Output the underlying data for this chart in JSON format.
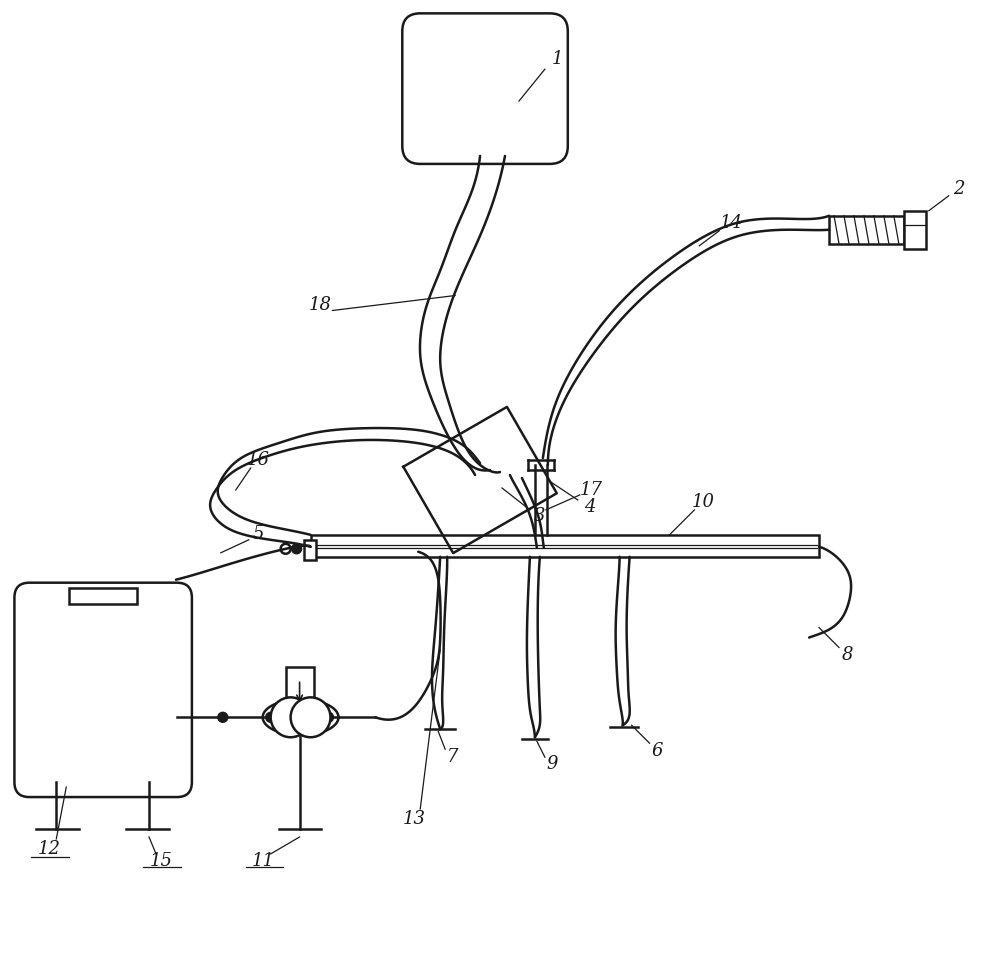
{
  "background_color": "#ffffff",
  "line_color": "#1a1a1a",
  "label_color": "#111111",
  "label_fontsize": 13,
  "figsize": [
    10.0,
    9.55
  ],
  "dpi": 100
}
